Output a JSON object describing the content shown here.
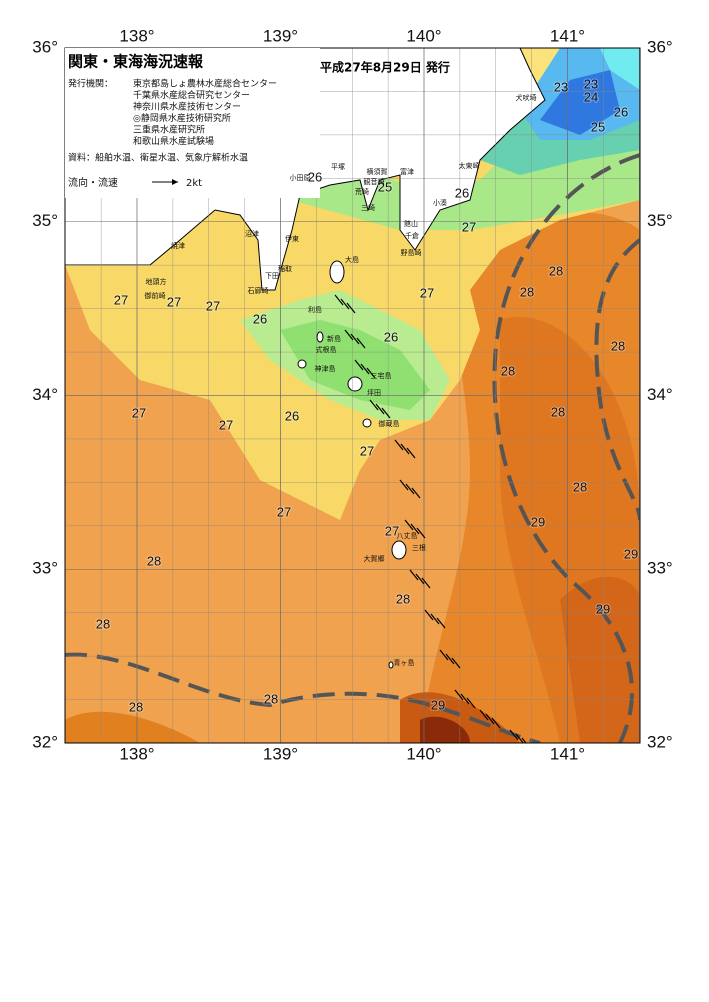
{
  "header": {
    "title": "関東・東海海況速報",
    "date": "平成27年8月29日 発行"
  },
  "issuers": {
    "label": "発行機関：",
    "names": [
      "東京都島しょ農林水産総合センター",
      "千葉県水産総合研究センター",
      "神奈川県水産技術センター",
      "◎静岡県水産技術研究所",
      "三重県水産研究所",
      "和歌山県水産試験場"
    ]
  },
  "sources": "資料：船舶水温、衛星水温、気象庁解析水温",
  "legend": {
    "label": "流向・流速",
    "speed": "2kt"
  },
  "lon_ticks": [
    {
      "value": 138,
      "label": "138°"
    },
    {
      "value": 139,
      "label": "139°"
    },
    {
      "value": 140,
      "label": "140°"
    },
    {
      "value": 141,
      "label": "141°"
    }
  ],
  "lat_ticks": [
    {
      "value": 36,
      "label": "36°"
    },
    {
      "value": 35,
      "label": "35°"
    },
    {
      "value": 34,
      "label": "34°"
    },
    {
      "value": 33,
      "label": "33°"
    },
    {
      "value": 32,
      "label": "32°"
    }
  ],
  "temperature_labels": [
    "23",
    "23",
    "24",
    "25",
    "26",
    "26",
    "25",
    "26",
    "27",
    "28",
    "28",
    "27",
    "27",
    "27",
    "27",
    "26",
    "26",
    "28",
    "28",
    "27",
    "27",
    "26",
    "28",
    "27",
    "28",
    "27",
    "27",
    "29",
    "29",
    "28",
    "28",
    "29",
    "28",
    "28",
    "28",
    "29"
  ],
  "place_names": [
    "犬吠埼",
    "太東崎",
    "小田原",
    "平塚",
    "横須賀",
    "富津",
    "観音崎",
    "荒崎",
    "三崎",
    "小湊",
    "館山",
    "千倉",
    "野島崎",
    "沼津",
    "伊東",
    "焼津",
    "稲取",
    "下田",
    "石廊崎",
    "地頭方",
    "御前崎",
    "大島",
    "利島",
    "新島",
    "式根島",
    "神津島",
    "三宅島",
    "坪田",
    "御蔵島",
    "八丈島",
    "大賀郷",
    "三根",
    "青ヶ島"
  ]
}
